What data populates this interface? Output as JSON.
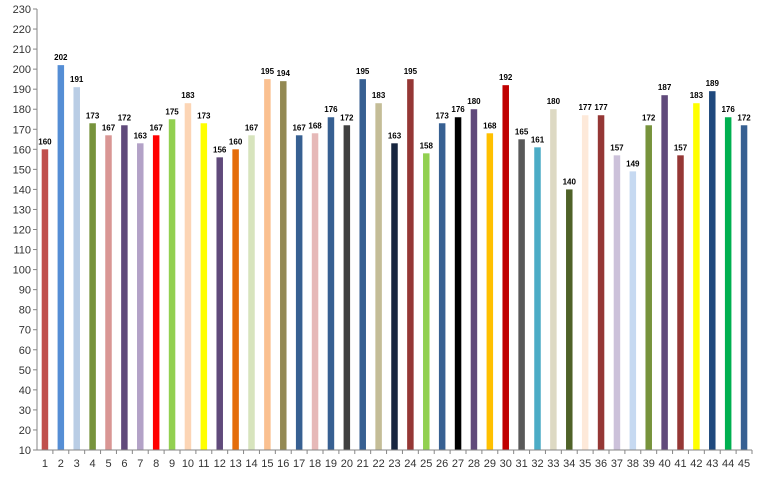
{
  "chart_data": {
    "type": "bar",
    "title": "",
    "xlabel": "",
    "ylabel": "",
    "ylim": [
      10,
      230
    ],
    "ytick_step": 10,
    "grid": false,
    "legend": "none",
    "categories": [
      "1",
      "2",
      "3",
      "4",
      "5",
      "6",
      "7",
      "8",
      "9",
      "10",
      "11",
      "12",
      "13",
      "14",
      "15",
      "16",
      "17",
      "18",
      "19",
      "20",
      "21",
      "22",
      "23",
      "24",
      "25",
      "26",
      "27",
      "28",
      "29",
      "30",
      "31",
      "32",
      "33",
      "34",
      "35",
      "36",
      "37",
      "38",
      "39",
      "40",
      "41",
      "42",
      "43",
      "44",
      "45"
    ],
    "values": [
      160,
      202,
      191,
      173,
      167,
      172,
      163,
      167,
      175,
      183,
      173,
      156,
      160,
      167,
      195,
      194,
      167,
      168,
      176,
      172,
      195,
      183,
      163,
      195,
      158,
      173,
      176,
      180,
      168,
      192,
      165,
      161,
      180,
      140,
      177,
      177,
      157,
      149,
      172,
      187,
      157,
      183,
      189,
      176,
      172
    ],
    "colors": [
      "#c0504d",
      "#558ed5",
      "#b9cde5",
      "#77933c",
      "#d99694",
      "#604a7b",
      "#b3a2c7",
      "#ff0000",
      "#92d050",
      "#fcd5b5",
      "#ffff00",
      "#604a7b",
      "#e46c0a",
      "#d7e4bd",
      "#fac090",
      "#938953",
      "#376092",
      "#e6b9b8",
      "#376092",
      "#3f3f3f",
      "#376092",
      "#c4bd97",
      "#17253f",
      "#953735",
      "#92d050",
      "#376092",
      "#000000",
      "#604a7b",
      "#ffc000",
      "#c00000",
      "#595959",
      "#4bacc6",
      "#ddd9c3",
      "#4f6228",
      "#fde9d9",
      "#953735",
      "#ccc1da",
      "#c6d9f1",
      "#77933c",
      "#604a7b",
      "#953735",
      "#ffff00",
      "#1f497d",
      "#00b050",
      "#376092"
    ]
  }
}
